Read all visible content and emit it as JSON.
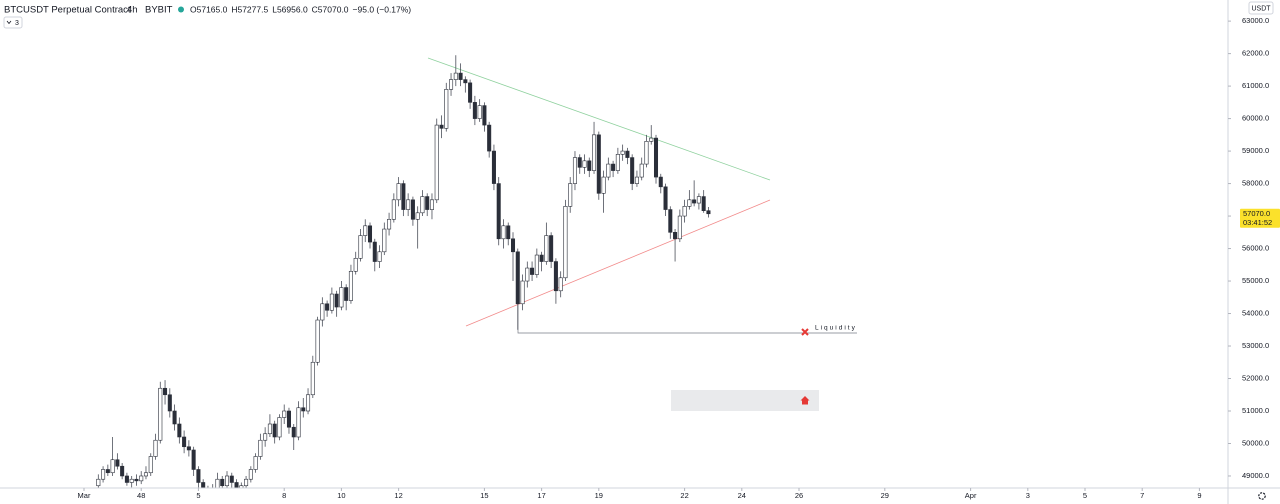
{
  "chart_data": {
    "type": "candlestick",
    "title": "BTCUSDT Perpetual Contract",
    "interval": "4h",
    "exchange": "BYBIT",
    "ohlc_legend": [
      "O57165.0",
      "H57277.5",
      "L56956.0",
      "C57070.0",
      "−95.0 (−0.17%)"
    ],
    "indicator_count": "3",
    "currency": "USDT",
    "annotation": "Liquidity",
    "last_price": {
      "value": 57070,
      "label": "57070.0"
    },
    "countdown": "03:41:52",
    "up_color": "#ffffff",
    "down_color": "#2a2e39",
    "grid": false,
    "xlim": [
      -70.5,
      960
    ],
    "ylim": [
      48630,
      63650
    ],
    "xticks": [
      {
        "value": 0,
        "label": "Mar"
      },
      48,
      {
        "value": 96,
        "label": "5"
      },
      {
        "value": 168,
        "label": "8"
      },
      {
        "value": 216,
        "label": "10"
      },
      {
        "value": 264,
        "label": "12"
      },
      {
        "value": 336,
        "label": "15"
      },
      {
        "value": 384,
        "label": "17"
      },
      {
        "value": 432,
        "label": "19"
      },
      {
        "value": 504,
        "label": "22"
      },
      {
        "value": 552,
        "label": "24"
      },
      {
        "value": 600,
        "label": "26"
      },
      {
        "value": 672,
        "label": "29"
      },
      {
        "value": 744,
        "label": "Apr"
      },
      {
        "value": 792,
        "label": "3"
      },
      {
        "value": 840,
        "label": "5"
      },
      {
        "value": 888,
        "label": "7"
      },
      {
        "value": 936,
        "label": "9"
      }
    ],
    "yticks": [
      {
        "value": 49000,
        "label": "49000.0"
      },
      {
        "value": 50000,
        "label": "50000.0"
      },
      {
        "value": 51000,
        "label": "51000.0"
      },
      {
        "value": 52000,
        "label": "52000.0"
      },
      {
        "value": 53000,
        "label": "53000.0"
      },
      {
        "value": 54000,
        "label": "54000.0"
      },
      {
        "value": 55000,
        "label": "55000.0"
      },
      {
        "value": 56000,
        "label": "56000.0"
      },
      {
        "value": 57000,
        "label": "57000.0"
      },
      {
        "value": 58000,
        "label": "58000.0"
      },
      {
        "value": 59000,
        "label": "59000.0"
      },
      {
        "value": 60000,
        "label": "60000.0"
      },
      {
        "value": 61000,
        "label": "61000.0"
      },
      {
        "value": 62000,
        "label": "62000.0"
      },
      {
        "value": 63000,
        "label": "63000.0"
      }
    ],
    "x": [
      12,
      16,
      20,
      24,
      28,
      32,
      36,
      40,
      44,
      48,
      52,
      56,
      60,
      64,
      68,
      72,
      76,
      80,
      84,
      88,
      92,
      96,
      100,
      104,
      108,
      112,
      116,
      120,
      124,
      128,
      132,
      136,
      140,
      144,
      148,
      152,
      156,
      160,
      164,
      168,
      172,
      176,
      180,
      184,
      188,
      192,
      196,
      200,
      204,
      208,
      212,
      216,
      220,
      224,
      228,
      232,
      236,
      240,
      244,
      248,
      252,
      256,
      260,
      264,
      268,
      272,
      276,
      280,
      284,
      288,
      292,
      296,
      300,
      304,
      308,
      312,
      316,
      320,
      324,
      328,
      332,
      336,
      340,
      344,
      348,
      352,
      356,
      360,
      364,
      368,
      372,
      376,
      380,
      384,
      388,
      392,
      396,
      400,
      404,
      408,
      412,
      416,
      420,
      424,
      428,
      432,
      436,
      440,
      444,
      448,
      452,
      456,
      460,
      464,
      468,
      472,
      476,
      480,
      484,
      488,
      492,
      496,
      500,
      504,
      508,
      512,
      516,
      520,
      524
    ],
    "candles": [
      [
        48700,
        49050,
        48600,
        48900
      ],
      [
        48900,
        49300,
        48800,
        49200
      ],
      [
        49200,
        49350,
        49000,
        49100
      ],
      [
        49100,
        50200,
        49000,
        49500
      ],
      [
        49500,
        49700,
        49200,
        49300
      ],
      [
        49300,
        49400,
        48900,
        49000
      ],
      [
        49000,
        49100,
        48700,
        48800
      ],
      [
        48800,
        49000,
        48650,
        48900
      ],
      [
        48900,
        49050,
        48700,
        48850
      ],
      [
        48850,
        49150,
        48750,
        49000
      ],
      [
        49000,
        49300,
        48900,
        49100
      ],
      [
        49100,
        49700,
        49000,
        49600
      ],
      [
        49600,
        50300,
        49500,
        50100
      ],
      [
        50100,
        51900,
        50000,
        51700
      ],
      [
        51700,
        51950,
        51200,
        51500
      ],
      [
        51500,
        51700,
        50800,
        51000
      ],
      [
        51000,
        51200,
        50400,
        50600
      ],
      [
        50600,
        50800,
        50000,
        50200
      ],
      [
        50200,
        50400,
        49700,
        49900
      ],
      [
        49900,
        50100,
        49600,
        49800
      ],
      [
        49800,
        49900,
        49000,
        49200
      ],
      [
        49200,
        49300,
        48600,
        48800
      ],
      [
        48800,
        48900,
        48300,
        48500
      ],
      [
        48500,
        48700,
        48200,
        48400
      ],
      [
        48400,
        48750,
        48300,
        48600
      ],
      [
        48600,
        49100,
        48500,
        48900
      ],
      [
        48900,
        49000,
        48500,
        48700
      ],
      [
        48700,
        49150,
        48600,
        49000
      ],
      [
        49000,
        49100,
        48600,
        48800
      ],
      [
        48800,
        48900,
        48400,
        48600
      ],
      [
        48600,
        48800,
        48500,
        48700
      ],
      [
        48700,
        49000,
        48600,
        48900
      ],
      [
        48900,
        49300,
        48800,
        49200
      ],
      [
        49200,
        49700,
        49100,
        49600
      ],
      [
        49600,
        50300,
        49500,
        50100
      ],
      [
        50100,
        50500,
        49900,
        50300
      ],
      [
        50300,
        50900,
        50200,
        50600
      ],
      [
        50600,
        50700,
        50000,
        50200
      ],
      [
        50200,
        50900,
        50100,
        50800
      ],
      [
        50800,
        51200,
        50600,
        51000
      ],
      [
        51000,
        51100,
        50300,
        50500
      ],
      [
        50500,
        50600,
        49800,
        50200
      ],
      [
        50200,
        51300,
        50100,
        51100
      ],
      [
        51100,
        51400,
        50800,
        51000
      ],
      [
        51000,
        51700,
        50900,
        51500
      ],
      [
        51500,
        52700,
        51400,
        52500
      ],
      [
        52500,
        53900,
        52400,
        53800
      ],
      [
        53800,
        54500,
        53600,
        54300
      ],
      [
        54300,
        54400,
        53900,
        54100
      ],
      [
        54100,
        54800,
        54000,
        54600
      ],
      [
        54600,
        54700,
        53900,
        54200
      ],
      [
        54200,
        55000,
        54100,
        54800
      ],
      [
        54800,
        54900,
        54100,
        54400
      ],
      [
        54400,
        55500,
        54300,
        55300
      ],
      [
        55300,
        55900,
        55200,
        55700
      ],
      [
        55700,
        56600,
        55600,
        56400
      ],
      [
        56400,
        56900,
        56200,
        56700
      ],
      [
        56700,
        56800,
        56000,
        56200
      ],
      [
        56200,
        56300,
        55300,
        55600
      ],
      [
        55600,
        56100,
        55400,
        55900
      ],
      [
        55900,
        56800,
        55800,
        56600
      ],
      [
        56600,
        57100,
        56400,
        56900
      ],
      [
        56900,
        57700,
        56800,
        57500
      ],
      [
        57500,
        58200,
        57300,
        58000
      ],
      [
        58000,
        58100,
        57000,
        57200
      ],
      [
        57200,
        57700,
        57000,
        57500
      ],
      [
        57500,
        57600,
        56700,
        56900
      ],
      [
        56900,
        57300,
        56000,
        57100
      ],
      [
        57100,
        57800,
        57000,
        57600
      ],
      [
        57600,
        57700,
        57000,
        57200
      ],
      [
        57200,
        57700,
        56900,
        57500
      ],
      [
        57500,
        60000,
        57400,
        59800
      ],
      [
        59800,
        60100,
        59400,
        59700
      ],
      [
        59700,
        61100,
        59600,
        60900
      ],
      [
        60900,
        61400,
        60700,
        61200
      ],
      [
        61200,
        61950,
        61000,
        61400
      ],
      [
        61400,
        61700,
        61000,
        61200
      ],
      [
        61200,
        61300,
        60800,
        61100
      ],
      [
        61100,
        61200,
        60300,
        60500
      ],
      [
        60500,
        60700,
        59800,
        60000
      ],
      [
        60000,
        60600,
        59900,
        60400
      ],
      [
        60400,
        60500,
        59600,
        59800
      ],
      [
        59800,
        59900,
        58800,
        59000
      ],
      [
        59000,
        59200,
        57800,
        58000
      ],
      [
        58000,
        58200,
        56100,
        56300
      ],
      [
        56300,
        56900,
        56000,
        56700
      ],
      [
        56700,
        56800,
        56100,
        56300
      ],
      [
        56300,
        56500,
        55000,
        55900
      ],
      [
        55900,
        56000,
        53500,
        54300
      ],
      [
        54300,
        55200,
        54100,
        55000
      ],
      [
        55000,
        55600,
        54800,
        55400
      ],
      [
        55400,
        55600,
        55000,
        55200
      ],
      [
        55200,
        56000,
        55100,
        55800
      ],
      [
        55800,
        55900,
        55300,
        55600
      ],
      [
        55600,
        56800,
        55500,
        56400
      ],
      [
        56400,
        56500,
        55400,
        55600
      ],
      [
        55600,
        55700,
        54300,
        54700
      ],
      [
        54700,
        55300,
        54500,
        55100
      ],
      [
        55100,
        57500,
        55000,
        57300
      ],
      [
        57300,
        58200,
        57100,
        58000
      ],
      [
        58000,
        59000,
        57800,
        58800
      ],
      [
        58800,
        58900,
        58300,
        58500
      ],
      [
        58500,
        58900,
        58300,
        58700
      ],
      [
        58700,
        58800,
        58200,
        58400
      ],
      [
        58400,
        59900,
        58300,
        59500
      ],
      [
        59500,
        59600,
        57500,
        57700
      ],
      [
        57700,
        58400,
        57100,
        58200
      ],
      [
        58200,
        58800,
        58100,
        58600
      ],
      [
        58600,
        58700,
        58200,
        58400
      ],
      [
        58400,
        59100,
        58300,
        58900
      ],
      [
        58900,
        59200,
        58700,
        59000
      ],
      [
        59000,
        59100,
        58600,
        58800
      ],
      [
        58800,
        58900,
        57800,
        58000
      ],
      [
        58000,
        58400,
        57900,
        58200
      ],
      [
        58200,
        58800,
        58100,
        58600
      ],
      [
        58600,
        59500,
        58500,
        59300
      ],
      [
        59300,
        59800,
        59200,
        59400
      ],
      [
        59400,
        59500,
        58000,
        58200
      ],
      [
        58200,
        58300,
        57700,
        57900
      ],
      [
        57900,
        58000,
        57000,
        57200
      ],
      [
        57200,
        57300,
        56300,
        56500
      ],
      [
        56500,
        56600,
        55600,
        56300
      ],
      [
        56300,
        57200,
        56200,
        57000
      ],
      [
        57000,
        57500,
        56800,
        57300
      ],
      [
        57300,
        57800,
        57200,
        57500
      ],
      [
        57500,
        58100,
        57300,
        57400
      ],
      [
        57400,
        57700,
        57200,
        57600
      ],
      [
        57600,
        57800,
        57100,
        57165
      ],
      [
        57165,
        57277.5,
        56956,
        57070
      ]
    ]
  }
}
